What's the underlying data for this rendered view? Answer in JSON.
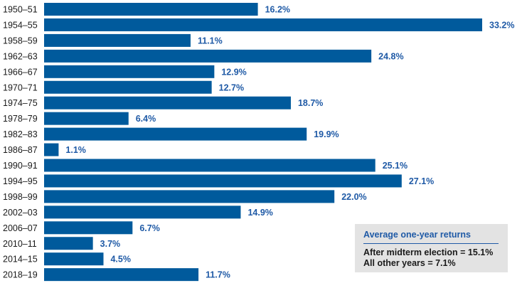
{
  "chart_data": {
    "type": "bar",
    "orientation": "horizontal",
    "title": "",
    "xlabel": "",
    "ylabel": "",
    "categories": [
      "1950–51",
      "1954–55",
      "1958–59",
      "1962–63",
      "1966–67",
      "1970–71",
      "1974–75",
      "1978–79",
      "1982–83",
      "1986–87",
      "1990–91",
      "1994–95",
      "1998–99",
      "2002–03",
      "2006–07",
      "2010–11",
      "2014–15",
      "2018–19"
    ],
    "values": [
      16.2,
      33.2,
      11.1,
      24.8,
      12.9,
      12.7,
      18.7,
      6.4,
      19.9,
      1.1,
      25.1,
      27.1,
      22.0,
      14.9,
      6.7,
      3.7,
      4.5,
      11.7
    ],
    "value_labels": [
      "16.2%",
      "33.2%",
      "11.1%",
      "24.8%",
      "12.9%",
      "12.7%",
      "18.7%",
      "6.4%",
      "19.9%",
      "1.1%",
      "25.1%",
      "27.1%",
      "22.0%",
      "14.9%",
      "6.7%",
      "3.7%",
      "4.5%",
      "11.7%"
    ],
    "xlim": [
      0,
      33.2
    ],
    "grid": false,
    "bar_color": "#005a9c",
    "label_color": "#1f5aa6"
  },
  "legend": {
    "title": "Average one-year returns",
    "lines": [
      "After midterm election = 15.1%",
      "All other years = 7.1%"
    ],
    "placement": "bottom-right",
    "background": "#e3e3e3"
  }
}
